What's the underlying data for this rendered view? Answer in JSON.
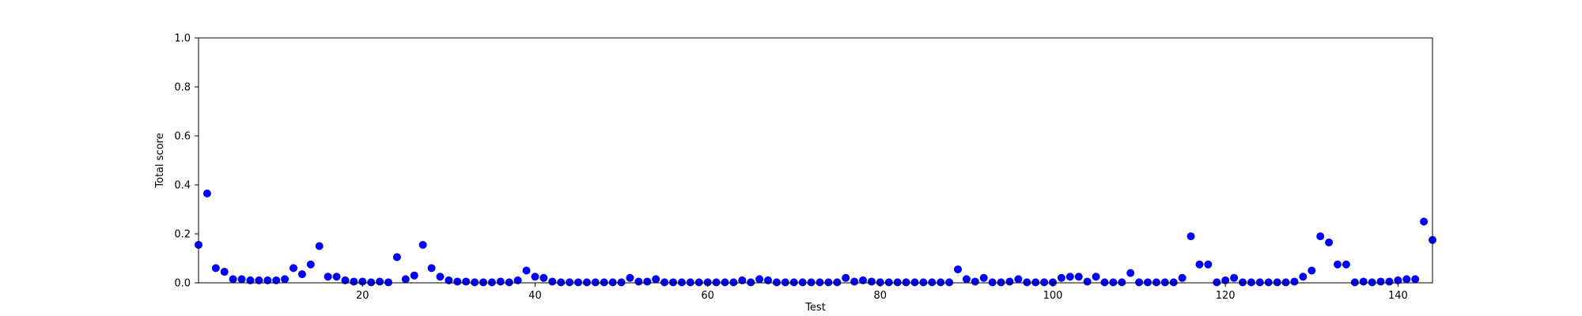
{
  "chart_data": {
    "type": "scatter",
    "title": "",
    "xlabel": "Test",
    "ylabel": "Total score",
    "xlim": [
      1,
      144
    ],
    "ylim": [
      0,
      1.0
    ],
    "xticks": [
      20,
      40,
      60,
      80,
      100,
      120,
      140
    ],
    "yticks": [
      0.0,
      0.2,
      0.4,
      0.6,
      0.8,
      1.0
    ],
    "ytick_labels": [
      "0.0",
      "0.2",
      "0.4",
      "0.6",
      "0.8",
      "1.0"
    ],
    "grid": false,
    "marker_color": "#0000ff",
    "x": [
      1,
      2,
      3,
      4,
      5,
      6,
      7,
      8,
      9,
      10,
      11,
      12,
      13,
      14,
      15,
      16,
      17,
      18,
      19,
      20,
      21,
      22,
      23,
      24,
      25,
      26,
      27,
      28,
      29,
      30,
      31,
      32,
      33,
      34,
      35,
      36,
      37,
      38,
      39,
      40,
      41,
      42,
      43,
      44,
      45,
      46,
      47,
      48,
      49,
      50,
      51,
      52,
      53,
      54,
      55,
      56,
      57,
      58,
      59,
      60,
      61,
      62,
      63,
      64,
      65,
      66,
      67,
      68,
      69,
      70,
      71,
      72,
      73,
      74,
      75,
      76,
      77,
      78,
      79,
      80,
      81,
      82,
      83,
      84,
      85,
      86,
      87,
      88,
      89,
      90,
      91,
      92,
      93,
      94,
      95,
      96,
      97,
      98,
      99,
      100,
      101,
      102,
      103,
      104,
      105,
      106,
      107,
      108,
      109,
      110,
      111,
      112,
      113,
      114,
      115,
      116,
      117,
      118,
      119,
      120,
      121,
      122,
      123,
      124,
      125,
      126,
      127,
      128,
      129,
      130,
      131,
      132,
      133,
      134,
      135,
      136,
      137,
      138,
      139,
      140,
      141,
      142,
      143,
      144
    ],
    "y": [
      0.155,
      0.365,
      0.06,
      0.045,
      0.015,
      0.015,
      0.01,
      0.01,
      0.01,
      0.01,
      0.015,
      0.06,
      0.035,
      0.075,
      0.15,
      0.025,
      0.025,
      0.01,
      0.005,
      0.005,
      0.002,
      0.005,
      0.002,
      0.105,
      0.015,
      0.03,
      0.155,
      0.06,
      0.025,
      0.01,
      0.005,
      0.005,
      0.002,
      0.002,
      0.002,
      0.005,
      0.002,
      0.01,
      0.05,
      0.025,
      0.02,
      0.005,
      0.002,
      0.002,
      0.002,
      0.002,
      0.002,
      0.002,
      0.002,
      0.002,
      0.02,
      0.005,
      0.005,
      0.015,
      0.002,
      0.002,
      0.002,
      0.002,
      0.002,
      0.002,
      0.002,
      0.002,
      0.002,
      0.01,
      0.002,
      0.015,
      0.01,
      0.002,
      0.002,
      0.002,
      0.002,
      0.002,
      0.002,
      0.002,
      0.002,
      0.02,
      0.005,
      0.01,
      0.005,
      0.002,
      0.002,
      0.002,
      0.002,
      0.002,
      0.002,
      0.002,
      0.002,
      0.002,
      0.055,
      0.015,
      0.005,
      0.02,
      0.002,
      0.002,
      0.005,
      0.015,
      0.002,
      0.002,
      0.002,
      0.002,
      0.02,
      0.025,
      0.025,
      0.005,
      0.025,
      0.002,
      0.002,
      0.002,
      0.04,
      0.002,
      0.002,
      0.002,
      0.002,
      0.002,
      0.02,
      0.19,
      0.075,
      0.075,
      0.002,
      0.01,
      0.02,
      0.002,
      0.002,
      0.002,
      0.002,
      0.002,
      0.002,
      0.005,
      0.025,
      0.05,
      0.19,
      0.165,
      0.075,
      0.075,
      0.002,
      0.005,
      0.002,
      0.005,
      0.005,
      0.01,
      0.015,
      0.015,
      0.25,
      0.175
    ]
  }
}
